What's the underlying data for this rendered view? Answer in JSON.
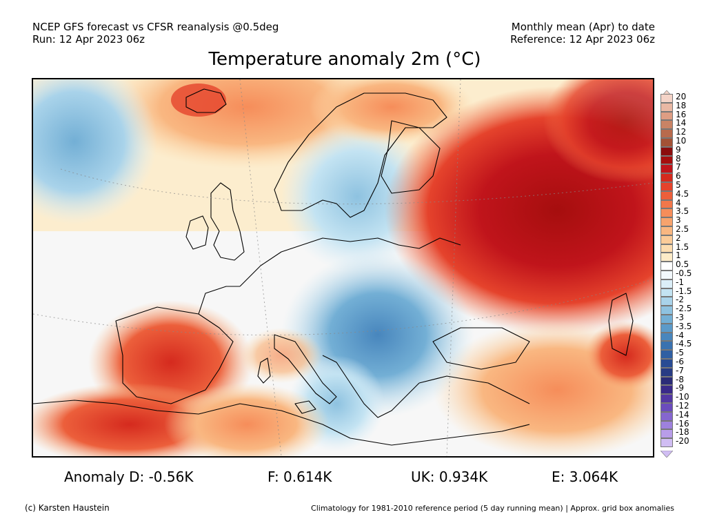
{
  "header": {
    "model_line": "NCEP GFS forecast vs CFSR reanalysis @0.5deg",
    "run_line": "Run: 12 Apr 2023 06z",
    "period_line": "Monthly mean (Apr) to date",
    "reference_line": "Reference: 12 Apr 2023 06z"
  },
  "title": "Temperature anomaly 2m (°C)",
  "colorbar": {
    "labels": [
      "20",
      "18",
      "16",
      "14",
      "12",
      "10",
      "9",
      "8",
      "7",
      "6",
      "5",
      "4.5",
      "4",
      "3.5",
      "3",
      "2.5",
      "2",
      "1.5",
      "1",
      "0.5",
      "-0.5",
      "-1",
      "-1.5",
      "-2",
      "-2.5",
      "-3",
      "-3.5",
      "-4",
      "-4.5",
      "-5",
      "-6",
      "-7",
      "-8",
      "-9",
      "-10",
      "-12",
      "-14",
      "-16",
      "-18",
      "-20"
    ],
    "colors": [
      "#f4d3c7",
      "#e9b8a4",
      "#de9d83",
      "#c98365",
      "#b86a4c",
      "#a35236",
      "#8b0d0d",
      "#a60e0e",
      "#c0141b",
      "#d52a1e",
      "#e5432c",
      "#ec5f3b",
      "#f2774a",
      "#f68d5a",
      "#f7a36d",
      "#f9b781",
      "#fbcb98",
      "#fcdcaf",
      "#fdebc7",
      "#ffffff",
      "#f2f8fc",
      "#dbeef8",
      "#c3e3f2",
      "#a9d3ea",
      "#8ec2e0",
      "#73afd5",
      "#5b9ac9",
      "#4886bd",
      "#3a72b0",
      "#2f5fa3",
      "#294c94",
      "#283c84",
      "#2b2c78",
      "#3a2a8a",
      "#5338a4",
      "#6b4cbd",
      "#8566cf",
      "#9e81dd",
      "#b89de9",
      "#d0bdf3"
    ]
  },
  "stats": {
    "germany": "Anomaly D: -0.56K",
    "france": "F: 0.614K",
    "uk": "UK: 0.934K",
    "europe": "E: 3.064K"
  },
  "footer": {
    "credit": "(c) Karsten Haustein",
    "climatology_note": "Climatology for 1981-2010 reference period (5 day running mean) | Approx. grid box anomalies"
  }
}
